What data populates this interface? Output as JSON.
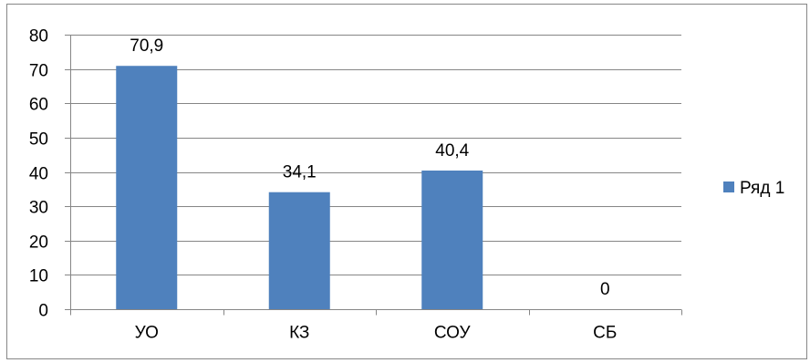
{
  "chart_data": {
    "type": "bar",
    "categories": [
      "УО",
      "КЗ",
      "СОУ",
      "СБ"
    ],
    "series": [
      {
        "name": "Ряд 1",
        "values": [
          70.9,
          34.1,
          40.4,
          0
        ],
        "data_labels": [
          "70,9",
          "34,1",
          "40,4",
          "0"
        ],
        "color": "#4f81bd"
      }
    ],
    "title": "",
    "xlabel": "",
    "ylabel": "",
    "ylim": [
      0,
      80
    ],
    "yticks": [
      0,
      10,
      20,
      30,
      40,
      50,
      60,
      70,
      80
    ],
    "grid": true,
    "legend_position": "right"
  },
  "colors": {
    "bar": "#4f81bd",
    "grid": "#868686",
    "axis": "#868686",
    "frame": "#878787"
  }
}
